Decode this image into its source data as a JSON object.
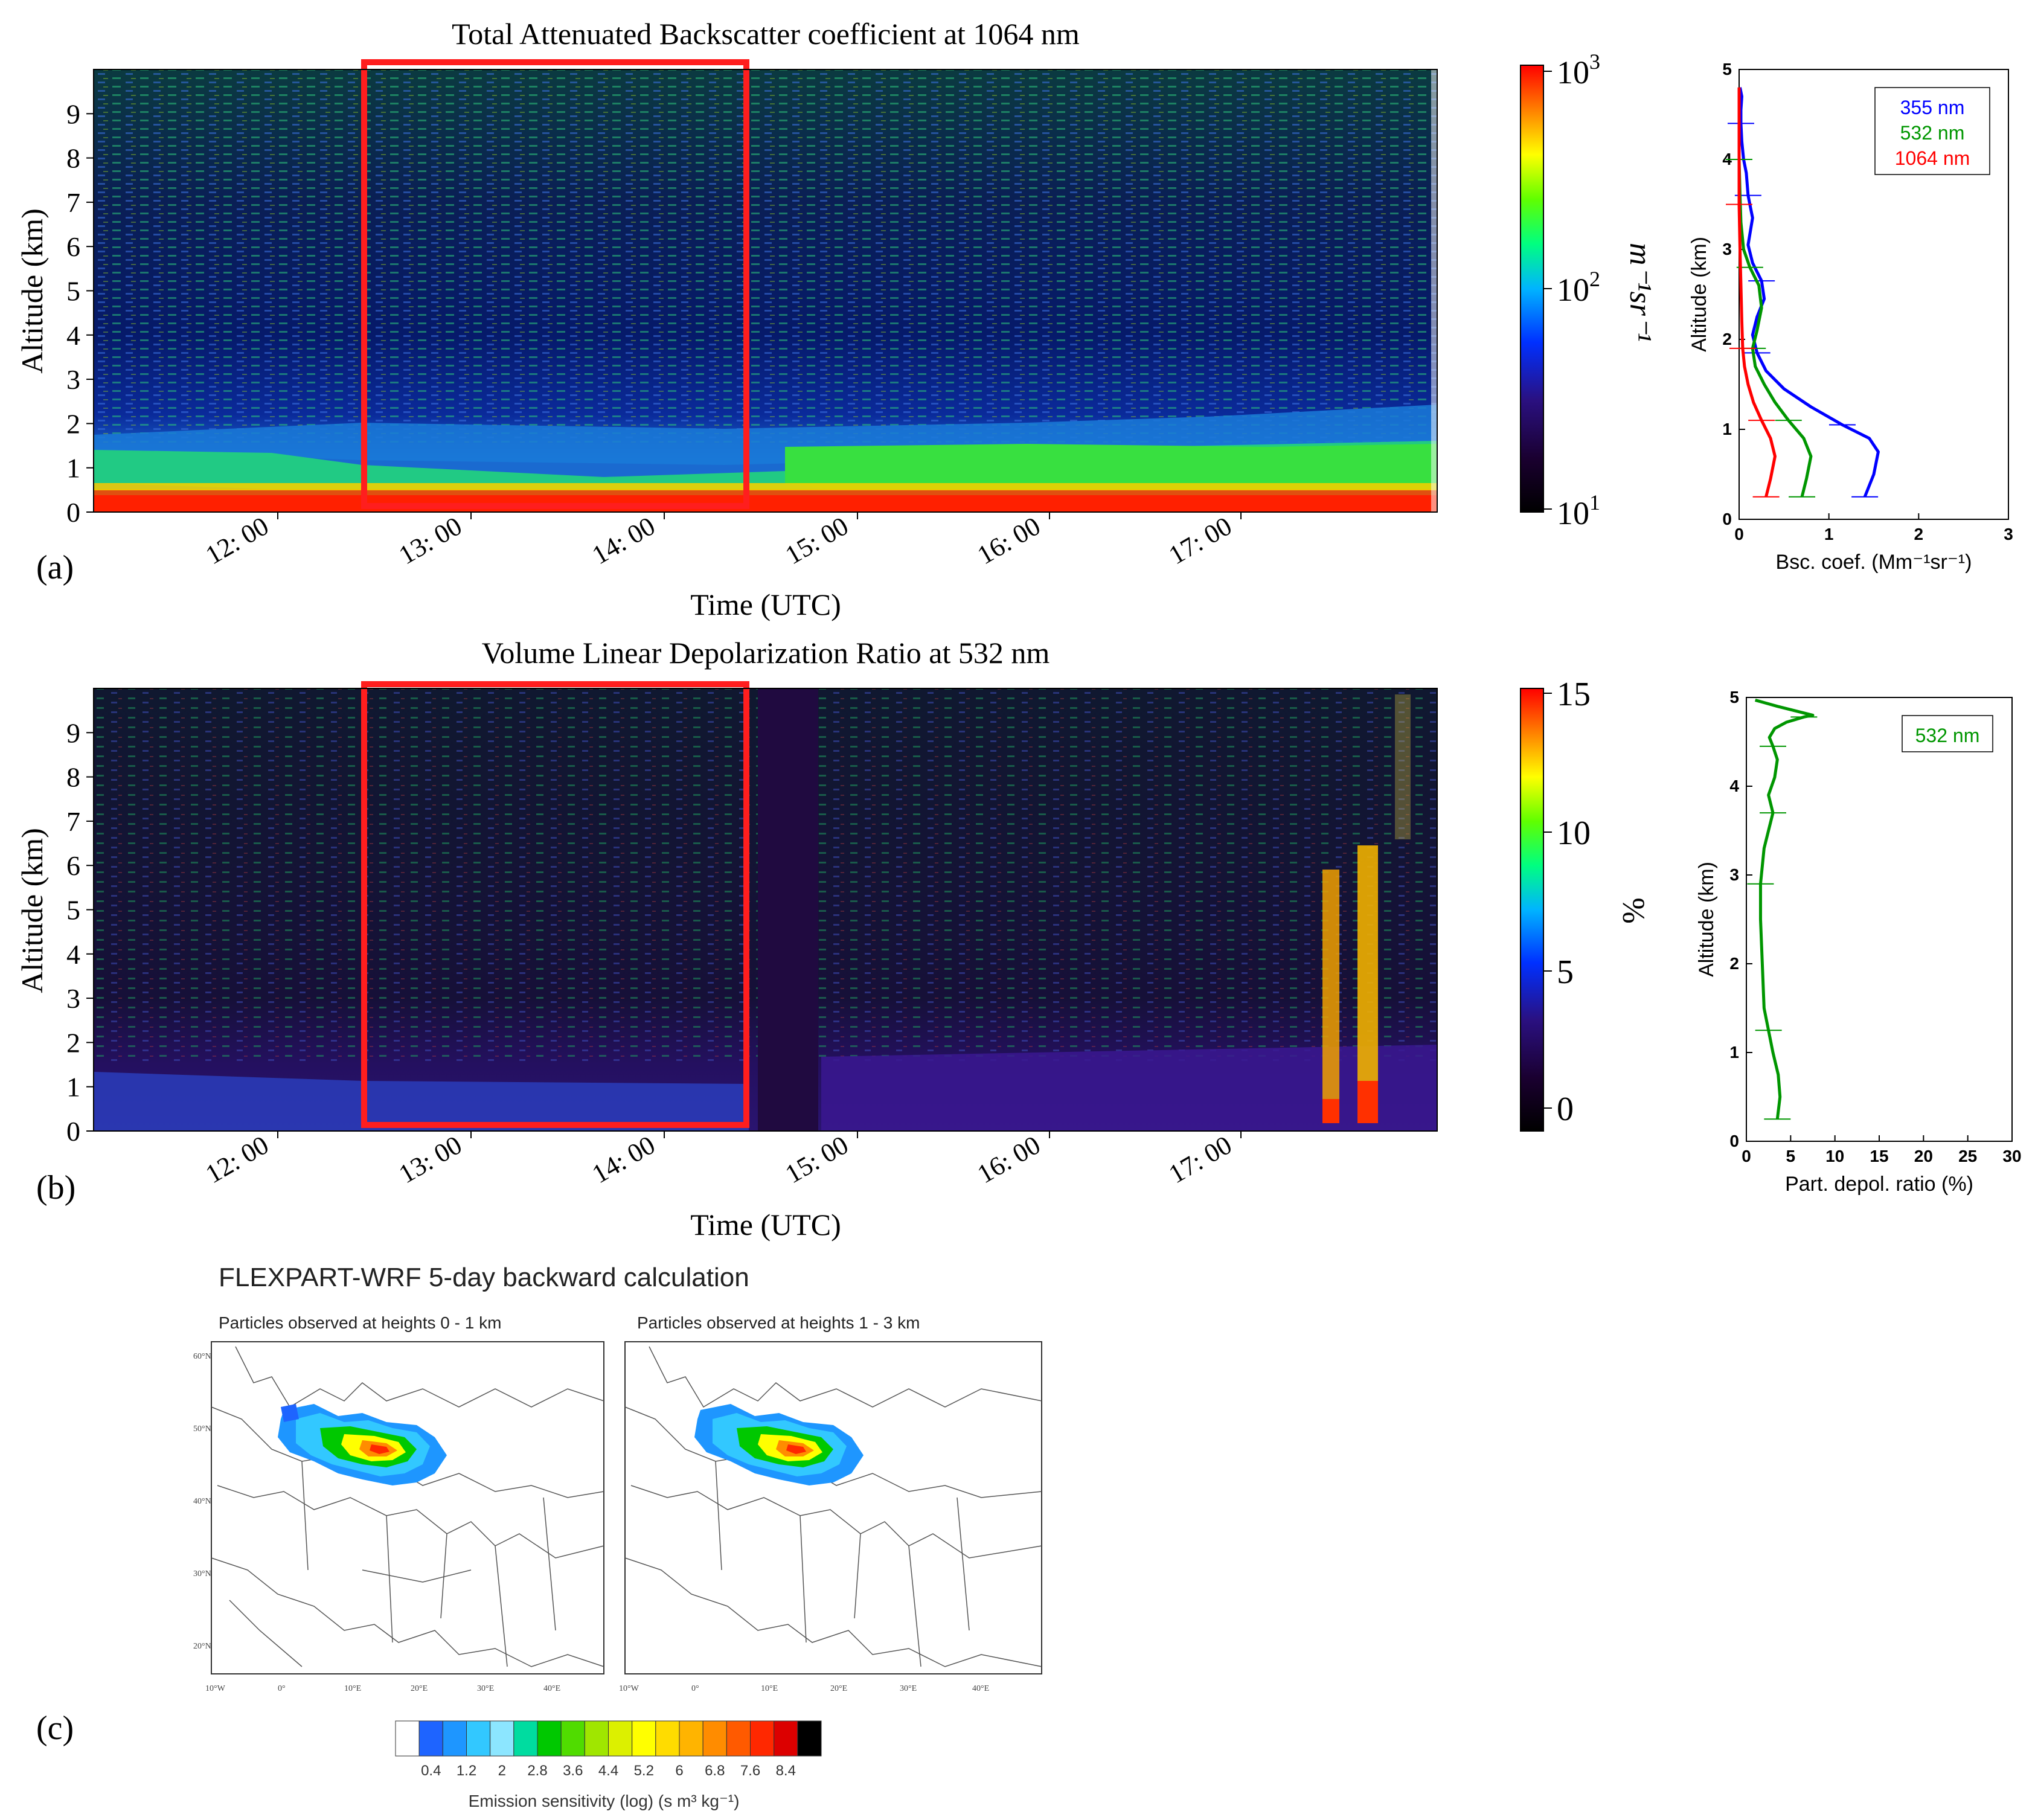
{
  "panel_a": {
    "label": "(a)",
    "title": "Total Attenuated Backscatter coefficient at 1064 nm",
    "ylabel": "Altitude (km)",
    "xlabel": "Time (UTC)",
    "yticks": [
      "0",
      "1",
      "2",
      "3",
      "4",
      "5",
      "6",
      "7",
      "8",
      "9"
    ],
    "xticks": [
      "12: 00",
      "13: 00",
      "14: 00",
      "15: 00",
      "16: 00",
      "17: 00"
    ],
    "colorbar": {
      "ticks_base": [
        "10",
        "10",
        "10"
      ],
      "ticks_exp": [
        "3",
        "2",
        "1"
      ],
      "unit": "m⁻¹sr⁻¹"
    }
  },
  "panel_b": {
    "label": "(b)",
    "title": "Volume Linear Depolarization Ratio at 532 nm",
    "ylabel": "Altitude (km)",
    "xlabel": "Time (UTC)",
    "yticks": [
      "0",
      "1",
      "2",
      "3",
      "4",
      "5",
      "6",
      "7",
      "8",
      "9"
    ],
    "xticks": [
      "12: 00",
      "13: 00",
      "14: 00",
      "15: 00",
      "16: 00",
      "17: 00"
    ],
    "colorbar": {
      "ticks": [
        "15",
        "10",
        "5",
        "0"
      ],
      "unit": "%"
    }
  },
  "panel_c": {
    "label": "(c)",
    "title": "FLEXPART-WRF 5-day backward calculation",
    "map1_title": "Particles observed at heights 0 - 1 km",
    "map2_title": "Particles observed at heights 1 - 3 km",
    "lat_labels": [
      "60°N",
      "50°N",
      "40°N",
      "30°N",
      "20°N"
    ],
    "lon_labels": [
      "10°W",
      "0°",
      "10°E",
      "20°E",
      "30°E",
      "40°E"
    ],
    "legend_ticks": [
      "0.4",
      "1.2",
      "2",
      "2.8",
      "3.6",
      "4.4",
      "5.2",
      "6",
      "6.8",
      "7.6",
      "8.4"
    ],
    "legend_label": "Emission sensitivity (log) (s m³ kg⁻¹)",
    "legend_colors": [
      "#ffffff",
      "#1e64ff",
      "#1e96ff",
      "#32c8ff",
      "#8ce6ff",
      "#00dca0",
      "#00c800",
      "#50dc00",
      "#a0e600",
      "#dcf000",
      "#ffff00",
      "#ffdc00",
      "#ffb400",
      "#ff8c00",
      "#ff5a00",
      "#ff2800",
      "#dc0000",
      "#000000"
    ]
  },
  "chart_data": [
    {
      "type": "line",
      "title": "",
      "xlabel": "Bsc. coef. (Mm⁻¹sr⁻¹)",
      "ylabel": "Altitude (km)",
      "xlim": [
        0,
        3
      ],
      "ylim": [
        0,
        5
      ],
      "xticks": [
        "0",
        "1",
        "2",
        "3"
      ],
      "yticks": [
        "0",
        "1",
        "2",
        "3",
        "4",
        "5"
      ],
      "series": [
        {
          "name": "355 nm",
          "color": "#0000ff",
          "x": [
            1.4,
            1.5,
            1.55,
            1.45,
            1.15,
            0.8,
            0.5,
            0.3,
            0.2,
            0.15,
            0.2,
            0.28,
            0.25,
            0.15,
            0.1,
            0.15,
            0.1,
            0.08,
            0.05,
            0.03,
            0.02,
            0.02,
            0.03,
            0.01
          ],
          "y": [
            0.25,
            0.5,
            0.75,
            0.9,
            1.05,
            1.25,
            1.45,
            1.65,
            1.85,
            2.05,
            2.25,
            2.45,
            2.65,
            2.85,
            3.05,
            3.35,
            3.6,
            3.85,
            4.0,
            4.2,
            4.4,
            4.55,
            4.7,
            4.8
          ]
        },
        {
          "name": "532 nm",
          "color": "#009600",
          "x": [
            0.7,
            0.75,
            0.8,
            0.72,
            0.55,
            0.4,
            0.28,
            0.18,
            0.15,
            0.2,
            0.25,
            0.22,
            0.12,
            0.05,
            0.02,
            0.01,
            0.0
          ],
          "y": [
            0.25,
            0.45,
            0.7,
            0.9,
            1.1,
            1.3,
            1.5,
            1.7,
            1.9,
            2.1,
            2.35,
            2.6,
            2.8,
            3.0,
            3.3,
            3.6,
            4.0
          ]
        },
        {
          "name": "1064 nm",
          "color": "#ff0000",
          "x": [
            0.3,
            0.35,
            0.4,
            0.35,
            0.25,
            0.16,
            0.1,
            0.06,
            0.04,
            0.03,
            0.02,
            0.01,
            0.0,
            0.0
          ],
          "y": [
            0.25,
            0.45,
            0.7,
            0.9,
            1.1,
            1.3,
            1.5,
            1.7,
            1.9,
            2.2,
            2.6,
            3.0,
            3.5,
            4.8
          ]
        }
      ]
    },
    {
      "type": "line",
      "title": "",
      "xlabel": "Part. depol. ratio (%)",
      "ylabel": "Altitude (km)",
      "xlim": [
        0,
        30
      ],
      "ylim": [
        0,
        5
      ],
      "xticks": [
        "0",
        "5",
        "10",
        "15",
        "20",
        "25",
        "30"
      ],
      "yticks": [
        "0",
        "1",
        "2",
        "3",
        "4",
        "5"
      ],
      "series": [
        {
          "name": "532 nm",
          "color": "#009600",
          "x": [
            3.5,
            3.8,
            3.6,
            3.0,
            2.5,
            2.0,
            1.8,
            1.6,
            1.6,
            1.8,
            2.0,
            2.5,
            3.0,
            2.5,
            3.2,
            3.5,
            3.0,
            2.6,
            3.2,
            4.5,
            6.5,
            7.5,
            3.5,
            1.0
          ],
          "y": [
            0.25,
            0.5,
            0.75,
            1.0,
            1.25,
            1.5,
            2.0,
            2.5,
            2.9,
            3.1,
            3.3,
            3.5,
            3.7,
            3.9,
            4.1,
            4.3,
            4.45,
            4.55,
            4.65,
            4.72,
            4.78,
            4.8,
            4.9,
            4.97
          ]
        }
      ]
    }
  ]
}
